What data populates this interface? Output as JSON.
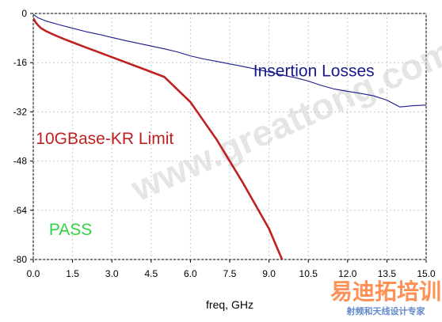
{
  "chart_data": {
    "type": "line",
    "xlabel": "freq, GHz",
    "ylabel": "",
    "xlim": [
      0,
      15
    ],
    "ylim": [
      -80,
      0
    ],
    "x_ticks": [
      "0.0",
      "1.5",
      "3.0",
      "4.5",
      "6.0",
      "7.5",
      "9.0",
      "10.5",
      "12.0",
      "13.5",
      "15.0"
    ],
    "y_ticks": [
      "0",
      "-16",
      "-32",
      "-48",
      "-64",
      "-80"
    ],
    "grid": true,
    "series": [
      {
        "name": "Insertion Losses",
        "color": "#1a1a8c",
        "x": [
          0.0,
          0.2,
          0.5,
          1.0,
          1.5,
          2.0,
          2.5,
          3.0,
          3.5,
          4.0,
          4.5,
          5.0,
          5.5,
          6.0,
          6.5,
          7.0,
          7.5,
          8.0,
          8.5,
          9.0,
          9.5,
          10.0,
          10.5,
          11.0,
          11.5,
          12.0,
          12.5,
          13.0,
          13.5,
          14.0,
          14.5,
          15.0
        ],
        "y": [
          -0.3,
          -1.5,
          -2.5,
          -3.7,
          -4.8,
          -5.9,
          -6.8,
          -7.8,
          -8.8,
          -9.7,
          -10.6,
          -11.5,
          -12.5,
          -13.8,
          -14.8,
          -15.6,
          -16.4,
          -17.2,
          -18.1,
          -19.0,
          -20.0,
          -20.9,
          -22.0,
          -23.4,
          -24.6,
          -25.3,
          -26.0,
          -26.8,
          -28.2,
          -30.4,
          -30.0,
          -29.8
        ]
      },
      {
        "name": "10GBase-KR Limit",
        "color": "#c02020",
        "x": [
          0.0,
          0.05,
          0.1,
          0.2,
          0.3,
          0.5,
          0.8,
          1.2,
          1.5,
          2.0,
          3.0,
          4.0,
          5.0,
          6.0,
          7.0,
          8.0,
          9.0,
          9.5
        ],
        "y": [
          -1.5,
          -2.3,
          -3.0,
          -4.0,
          -4.8,
          -5.8,
          -7.0,
          -8.4,
          -9.4,
          -11.0,
          -14.2,
          -17.4,
          -20.6,
          -28.8,
          -41.0,
          -55.0,
          -70.0,
          -80.0
        ]
      }
    ],
    "annotations": [
      {
        "text": "Insertion Losses",
        "color": "#1a1a8c",
        "x": 8.4,
        "y": -20.5,
        "anchor": "start"
      },
      {
        "text": "10GBase-KR Limit",
        "color": "#c02020",
        "x": 0.1,
        "y": -42.5,
        "anchor": "start"
      },
      {
        "text": "PASS",
        "color": "#2fd33f",
        "x": 0.6,
        "y": -72.0,
        "anchor": "start"
      }
    ]
  },
  "watermark": {
    "url_text": "www.greattong.com",
    "brand_text": "易迪拓培训",
    "subtitle_text": "射频和天线设计专家"
  }
}
